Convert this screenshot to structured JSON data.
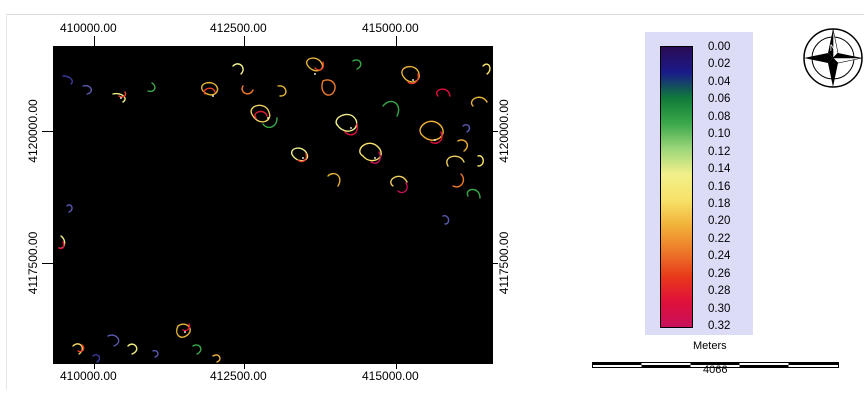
{
  "map": {
    "x_ticks": [
      "410000.00",
      "412500.00",
      "415000.00"
    ],
    "y_ticks": [
      "4120000.00",
      "4117500.00"
    ]
  },
  "legend": {
    "ramp_colors": [
      "#2a0b55",
      "#1a1a8a",
      "#107a3a",
      "#3aa84a",
      "#9cd67a",
      "#f2f08a",
      "#f7e26a",
      "#f2b23a",
      "#ee7a2a",
      "#e83a1a",
      "#e0103a",
      "#c8105a"
    ],
    "labels": [
      "0.00",
      "0.02",
      "0.04",
      "0.06",
      "0.08",
      "0.10",
      "0.12",
      "0.14",
      "0.16",
      "0.18",
      "0.20",
      "0.22",
      "0.24",
      "0.26",
      "0.28",
      "0.30",
      "0.32"
    ]
  },
  "north_arrow": {
    "icon": "north-arrow-icon",
    "letter": "N"
  },
  "scale_bar": {
    "title": "Meters",
    "value": "4066"
  }
}
